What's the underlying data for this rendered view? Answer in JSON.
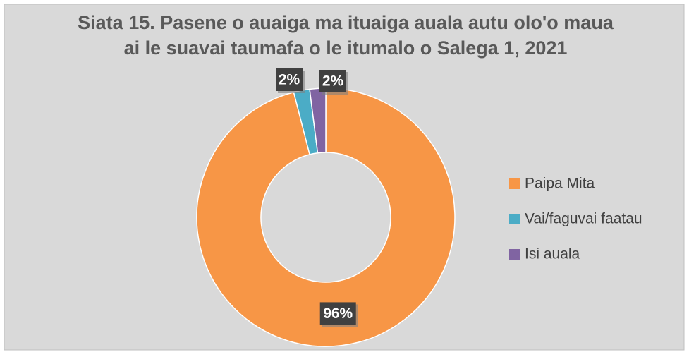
{
  "chart_data": {
    "type": "pie",
    "title": "Siata 15. Pasene o auaiga ma ituaiga auala autu olo'o maua ai le suavai taumafa o le itumalo o Salega 1, 2021",
    "categories": [
      "Paipa Mita",
      "Vai/faguvai faatau",
      "Isi auala"
    ],
    "values": [
      96,
      2,
      2
    ],
    "value_labels": [
      "96%",
      "2%",
      "2%"
    ],
    "colors": [
      "#f79646",
      "#4bacc6",
      "#8064a2"
    ],
    "legend": "right"
  }
}
